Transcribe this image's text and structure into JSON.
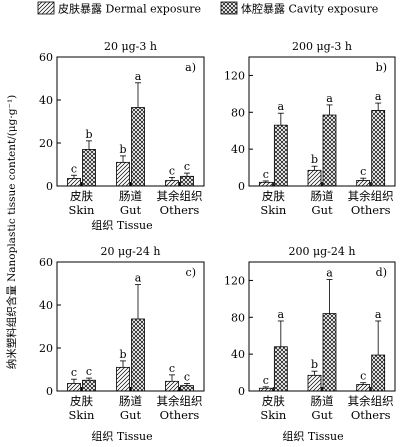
{
  "legend": [
    {
      "label": "皮肤暴露 Dermal exposure",
      "pattern": "hatch"
    },
    {
      "label": "体腔暴露 Cavity exposure",
      "pattern": "cross"
    }
  ],
  "ylabel": "纳米塑料组织含量 Nanoplastic tissue content/(μg·g⁻¹)",
  "xlabel": "组织 Tissue",
  "chart_data": [
    {
      "type": "bar",
      "title": "20 μg-3 h",
      "panel": "a)",
      "categories": [
        "皮肤\nSkin",
        "肠道\nGut",
        "其余组织\nOthers"
      ],
      "ylim": [
        0,
        60
      ],
      "yticks": [
        0,
        20,
        40,
        60
      ],
      "series": [
        {
          "name": "皮肤暴露 Dermal exposure",
          "values": [
            3.5,
            11,
            2.5
          ],
          "errors": [
            1.5,
            3,
            1.5
          ],
          "letters": [
            "c",
            "b",
            "c"
          ]
        },
        {
          "name": "体腔暴露 Cavity exposure",
          "values": [
            17,
            36.5,
            4.5
          ],
          "errors": [
            4,
            11.5,
            1.5
          ],
          "letters": [
            "b",
            "a",
            "c"
          ]
        }
      ]
    },
    {
      "type": "bar",
      "title": "200 μg-3 h",
      "panel": "b)",
      "categories": [
        "皮肤\nSkin",
        "肠道\nGut",
        "其余组织\nOthers"
      ],
      "ylim": [
        0,
        140
      ],
      "yticks": [
        0,
        40,
        80,
        120
      ],
      "series": [
        {
          "name": "皮肤暴露 Dermal exposure",
          "values": [
            4,
            17,
            6
          ],
          "errors": [
            1.5,
            4.5,
            2.5
          ],
          "letters": [
            "c",
            "b",
            "c"
          ]
        },
        {
          "name": "体腔暴露 Cavity exposure",
          "values": [
            66,
            77,
            82
          ],
          "errors": [
            13,
            11,
            8
          ],
          "letters": [
            "a",
            "a",
            "a"
          ]
        }
      ]
    },
    {
      "type": "bar",
      "title": "20 μg-24 h",
      "panel": "c)",
      "categories": [
        "皮肤\nSkin",
        "肠道\nGut",
        "其余组织\nOthers"
      ],
      "ylim": [
        0,
        60
      ],
      "yticks": [
        0,
        20,
        40,
        60
      ],
      "series": [
        {
          "name": "皮肤暴露 Dermal exposure",
          "values": [
            3.5,
            11,
            4.5
          ],
          "errors": [
            2,
            3,
            3
          ],
          "letters": [
            "c",
            "b",
            "c"
          ]
        },
        {
          "name": "体腔暴露 Cavity exposure",
          "values": [
            5,
            33.5,
            2.5
          ],
          "errors": [
            1,
            16,
            1
          ],
          "letters": [
            "c",
            "a",
            "c"
          ]
        }
      ]
    },
    {
      "type": "bar",
      "title": "200 μg-24 h",
      "panel": "d)",
      "categories": [
        "皮肤\nSkin",
        "肠道\nGut",
        "其余组织\nOthers"
      ],
      "ylim": [
        0,
        140
      ],
      "yticks": [
        0,
        40,
        80,
        120
      ],
      "series": [
        {
          "name": "皮肤暴露 Dermal exposure",
          "values": [
            3,
            17,
            7
          ],
          "errors": [
            1.5,
            4.5,
            2
          ],
          "letters": [
            "c",
            "b",
            "c"
          ]
        },
        {
          "name": "体腔暴露 Cavity exposure",
          "values": [
            48,
            84,
            39
          ],
          "errors": [
            28,
            37,
            37
          ],
          "letters": [
            "a",
            "a",
            "a"
          ]
        }
      ]
    }
  ]
}
